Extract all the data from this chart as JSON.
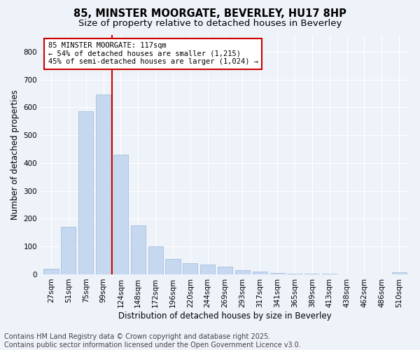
{
  "title1": "85, MINSTER MOORGATE, BEVERLEY, HU17 8HP",
  "title2": "Size of property relative to detached houses in Beverley",
  "xlabel": "Distribution of detached houses by size in Beverley",
  "ylabel": "Number of detached properties",
  "bar_color": "#c5d8f0",
  "bar_edge_color": "#9ab8d8",
  "categories": [
    "27sqm",
    "51sqm",
    "75sqm",
    "99sqm",
    "124sqm",
    "148sqm",
    "172sqm",
    "196sqm",
    "220sqm",
    "244sqm",
    "269sqm",
    "293sqm",
    "317sqm",
    "341sqm",
    "365sqm",
    "389sqm",
    "413sqm",
    "438sqm",
    "462sqm",
    "486sqm",
    "510sqm"
  ],
  "values": [
    20,
    170,
    585,
    645,
    430,
    175,
    100,
    55,
    40,
    35,
    28,
    15,
    10,
    5,
    3,
    2,
    2,
    1,
    1,
    1,
    7
  ],
  "ylim": [
    0,
    860
  ],
  "yticks": [
    0,
    100,
    200,
    300,
    400,
    500,
    600,
    700,
    800
  ],
  "vline_color": "#cc0000",
  "annotation_text": "85 MINSTER MOORGATE: 117sqm\n← 54% of detached houses are smaller (1,215)\n45% of semi-detached houses are larger (1,024) →",
  "annotation_box_color": "#ffffff",
  "annotation_box_edge": "#cc0000",
  "footnote1": "Contains HM Land Registry data © Crown copyright and database right 2025.",
  "footnote2": "Contains public sector information licensed under the Open Government Licence v3.0.",
  "background_color": "#eef2f9",
  "grid_color": "#ffffff",
  "title_fontsize": 10.5,
  "subtitle_fontsize": 9.5,
  "axis_label_fontsize": 8.5,
  "tick_fontsize": 7.5,
  "annotation_fontsize": 7.5,
  "footnote_fontsize": 7.0
}
